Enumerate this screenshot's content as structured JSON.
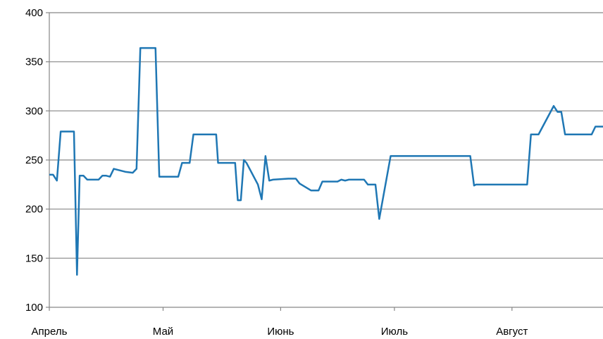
{
  "chart_data": {
    "type": "line",
    "title": "",
    "xlabel": "",
    "ylabel": "",
    "ylim": [
      100,
      400
    ],
    "yticks": [
      100,
      150,
      200,
      250,
      300,
      350,
      400
    ],
    "grid": "horizontal",
    "legend": "none",
    "x_start": "Апрель",
    "x_end_days": 146,
    "month_ticks": [
      {
        "label": "Апрель",
        "day": 0
      },
      {
        "label": "Май",
        "day": 30
      },
      {
        "label": "Июнь",
        "day": 61
      },
      {
        "label": "Июль",
        "day": 91
      },
      {
        "label": "Август",
        "day": 122
      }
    ],
    "colors": {
      "line": "#1f77b4",
      "grid": "#878787",
      "axis": "#878787"
    },
    "series": [
      {
        "points": [
          [
            0,
            235
          ],
          [
            1,
            235
          ],
          [
            2,
            229
          ],
          [
            3,
            279
          ],
          [
            5.2,
            279
          ],
          [
            6.5,
            279
          ],
          [
            7.3,
            133
          ],
          [
            8,
            234
          ],
          [
            9,
            234
          ],
          [
            10,
            230
          ],
          [
            13,
            230
          ],
          [
            14,
            234
          ],
          [
            15,
            234
          ],
          [
            16,
            233
          ],
          [
            17,
            241
          ],
          [
            20,
            238
          ],
          [
            22,
            237
          ],
          [
            23,
            241
          ],
          [
            24,
            364
          ],
          [
            28,
            364
          ],
          [
            29,
            233
          ],
          [
            34,
            233
          ],
          [
            35,
            247
          ],
          [
            37,
            247
          ],
          [
            38,
            276
          ],
          [
            44,
            276
          ],
          [
            44.5,
            247
          ],
          [
            49,
            247
          ],
          [
            49.7,
            209
          ],
          [
            50.5,
            209
          ],
          [
            51.3,
            250
          ],
          [
            52,
            247
          ],
          [
            55,
            225
          ],
          [
            56,
            210
          ],
          [
            57,
            254
          ],
          [
            58,
            229
          ],
          [
            59,
            230
          ],
          [
            63,
            231
          ],
          [
            65,
            231
          ],
          [
            66,
            226
          ],
          [
            69,
            219
          ],
          [
            71,
            219
          ],
          [
            72,
            228
          ],
          [
            76,
            228
          ],
          [
            77,
            230
          ],
          [
            78,
            229
          ],
          [
            79,
            230
          ],
          [
            83,
            230
          ],
          [
            84,
            225
          ],
          [
            86,
            225
          ],
          [
            87,
            190
          ],
          [
            90,
            254
          ],
          [
            111,
            254
          ],
          [
            112,
            224
          ],
          [
            112.5,
            225
          ],
          [
            126,
            225
          ],
          [
            127,
            276
          ],
          [
            129,
            276
          ],
          [
            133,
            305
          ],
          [
            134,
            299
          ],
          [
            135,
            299
          ],
          [
            136,
            276
          ],
          [
            143,
            276
          ],
          [
            144,
            284
          ],
          [
            146,
            284
          ]
        ]
      }
    ]
  }
}
